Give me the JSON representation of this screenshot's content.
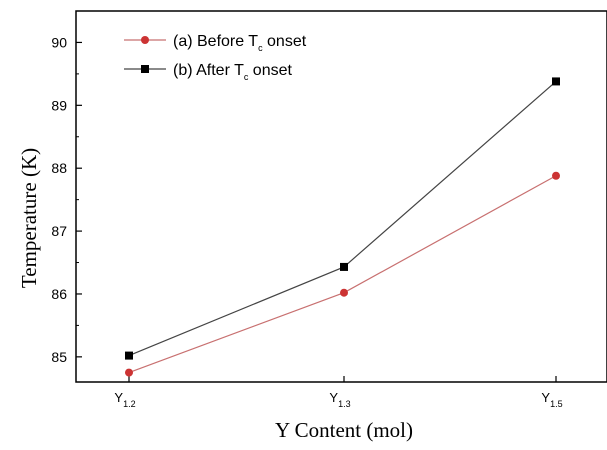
{
  "chart_data": {
    "type": "line",
    "xlabel": "Y Content (mol)",
    "ylabel": "Temperature (K)",
    "ylim": [
      84.6,
      90.5
    ],
    "y_ticks": [
      "85",
      "86",
      "87",
      "88",
      "89",
      "90"
    ],
    "categories": [
      {
        "base": "Y",
        "sub": "1.2"
      },
      {
        "base": "Y",
        "sub": "1.3"
      },
      {
        "base": "Y",
        "sub": "1.5"
      }
    ],
    "legend_position": "top-left",
    "grid": false,
    "series": [
      {
        "name_parts": {
          "prefix": "(a) Before T",
          "sub": "c",
          "suffix": " onset"
        },
        "marker": "circle",
        "color": "#cc3333",
        "line_color": "#c87070",
        "values": [
          84.75,
          86.02,
          87.88
        ]
      },
      {
        "name_parts": {
          "prefix": "(b) After T",
          "sub": "c",
          "suffix": " onset"
        },
        "marker": "square",
        "color": "#000000",
        "line_color": "#444444",
        "values": [
          85.02,
          86.43,
          89.38
        ]
      }
    ]
  }
}
